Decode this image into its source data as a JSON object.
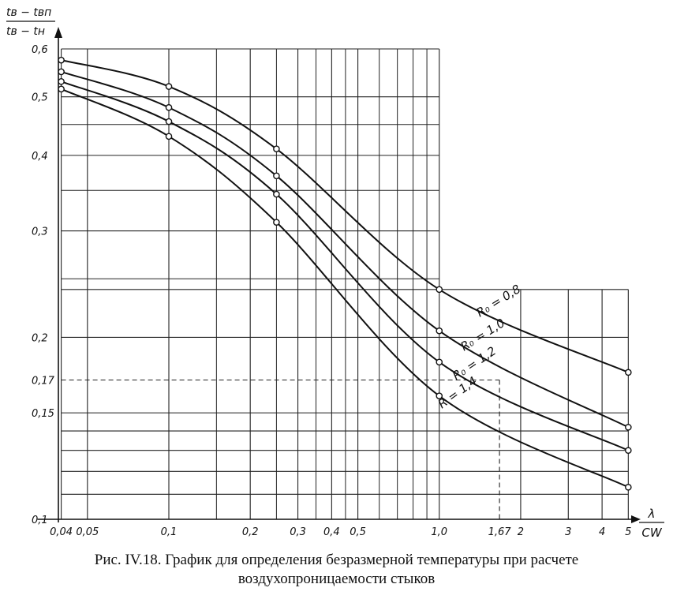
{
  "chart_data": {
    "type": "line",
    "x_scale": "log",
    "y_scale": "log",
    "grid": true,
    "xlim": [
      0.037,
      5.3
    ],
    "ylim": [
      0.1,
      0.6
    ],
    "ylabel": {
      "numerator": "tв − tвп",
      "denominator": "tв − tн"
    },
    "xlabel": {
      "numerator": "λ",
      "denominator": "CW"
    },
    "x_ticks": [
      {
        "value": 0.04,
        "label": "0,04"
      },
      {
        "value": 0.05,
        "label": "0,05"
      },
      {
        "value": 0.1,
        "label": "0,1"
      },
      {
        "value": 0.2,
        "label": "0,2"
      },
      {
        "value": 0.3,
        "label": "0,3"
      },
      {
        "value": 0.4,
        "label": "0,4"
      },
      {
        "value": 0.5,
        "label": "0,5"
      },
      {
        "value": 1.0,
        "label": "1,0"
      },
      {
        "value": 1.67,
        "label": "1,67"
      },
      {
        "value": 2,
        "label": "2"
      },
      {
        "value": 3,
        "label": "3"
      },
      {
        "value": 4,
        "label": "4"
      },
      {
        "value": 5,
        "label": "5"
      }
    ],
    "y_ticks": [
      {
        "value": 0.6,
        "label": "0,6"
      },
      {
        "value": 0.5,
        "label": "0,5"
      },
      {
        "value": 0.4,
        "label": "0,4"
      },
      {
        "value": 0.3,
        "label": "0,3"
      },
      {
        "value": 0.2,
        "label": "0,2"
      },
      {
        "value": 0.17,
        "label": "0,17"
      },
      {
        "value": 0.15,
        "label": "0,15"
      },
      {
        "value": 0.1,
        "label": "0,1"
      }
    ],
    "series": [
      {
        "name": "R0 = 0.8",
        "label": "R₀ = 0,8",
        "x": [
          0.04,
          0.1,
          0.25,
          1.0,
          5
        ],
        "y": [
          0.575,
          0.52,
          0.41,
          0.24,
          0.175
        ]
      },
      {
        "name": "R0 = 1.0",
        "label": "R₀ = 1,0",
        "x": [
          0.04,
          0.1,
          0.25,
          1.0,
          5
        ],
        "y": [
          0.55,
          0.48,
          0.37,
          0.205,
          0.142
        ]
      },
      {
        "name": "R0 = 1.2",
        "label": "R₀ = 1,2",
        "x": [
          0.04,
          0.1,
          0.25,
          1.0,
          5
        ],
        "y": [
          0.53,
          0.455,
          0.345,
          0.182,
          0.13
        ]
      },
      {
        "name": "R = 1.4",
        "label": "R = 1,4",
        "x": [
          0.04,
          0.1,
          0.25,
          1.0,
          5
        ],
        "y": [
          0.515,
          0.43,
          0.31,
          0.16,
          0.113
        ]
      }
    ],
    "dashed_reference": {
      "x": 1.67,
      "y": 0.17
    }
  },
  "caption": {
    "line1": "Рис. IV.18. График для определения безразмерной температуры при расчете",
    "line2": "воздухопроницаемости стыков"
  }
}
